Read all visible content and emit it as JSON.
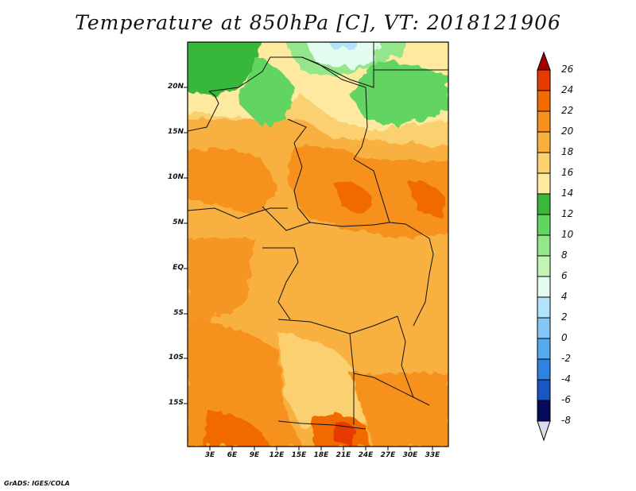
{
  "title": "Temperature at 850hPa [C], VT: 2018121906",
  "credit": "GrADS: IGES/COLA",
  "map": {
    "lat_labels": [
      "20N",
      "15N",
      "10N",
      "5N",
      "EQ",
      "5S",
      "10S",
      "15S"
    ],
    "lon_labels": [
      "3E",
      "6E",
      "9E",
      "12E",
      "15E",
      "18E",
      "21E",
      "24E",
      "27E",
      "30E",
      "33E"
    ]
  },
  "colorbar": {
    "labels": [
      "26",
      "24",
      "22",
      "20",
      "18",
      "16",
      "14",
      "12",
      "10",
      "8",
      "6",
      "4",
      "2",
      "0",
      "-2",
      "-4",
      "-6",
      "-8"
    ],
    "colors": [
      "#a50000",
      "#e63a00",
      "#f06b00",
      "#f5911c",
      "#f8b040",
      "#fbd070",
      "#fdeaa0",
      "#fff8c8",
      "#39b83b",
      "#62d462",
      "#93e68a",
      "#c3f4b4",
      "#e4fcf0",
      "#b3e2fb",
      "#84c6f5",
      "#56a9ee",
      "#2e82e0",
      "#1a56c2",
      "#0a2e96",
      "#050a5a",
      "#dcdcf0"
    ]
  }
}
